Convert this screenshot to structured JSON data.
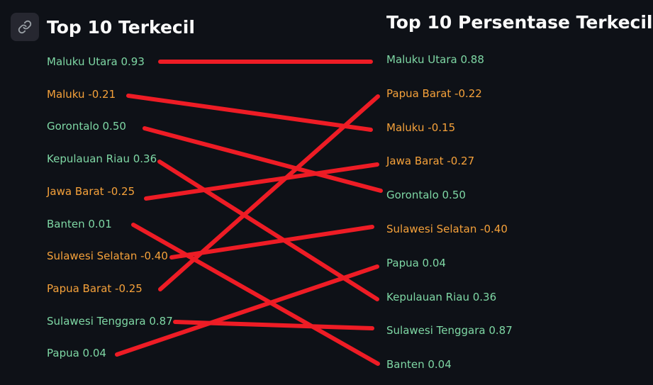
{
  "left": {
    "title": "Top 10 Terkecil",
    "items": [
      {
        "label": "Maluku Utara 0.93",
        "tone": "pos"
      },
      {
        "label": "Maluku -0.21",
        "tone": "neg"
      },
      {
        "label": "Gorontalo 0.50",
        "tone": "pos"
      },
      {
        "label": "Kepulauan Riau 0.36",
        "tone": "pos"
      },
      {
        "label": "Jawa Barat -0.25",
        "tone": "neg"
      },
      {
        "label": "Banten 0.01",
        "tone": "pos"
      },
      {
        "label": "Sulawesi Selatan -0.40",
        "tone": "neg"
      },
      {
        "label": "Papua Barat -0.25",
        "tone": "neg"
      },
      {
        "label": "Sulawesi Tenggara 0.87",
        "tone": "pos"
      },
      {
        "label": "Papua 0.04",
        "tone": "pos"
      }
    ]
  },
  "right": {
    "title": "Top 10 Persentase Terkecil",
    "items": [
      {
        "label": "Maluku Utara 0.88",
        "tone": "pos"
      },
      {
        "label": "Papua Barat -0.22",
        "tone": "neg"
      },
      {
        "label": "Maluku -0.15",
        "tone": "neg"
      },
      {
        "label": "Jawa Barat -0.27",
        "tone": "neg"
      },
      {
        "label": "Gorontalo 0.50",
        "tone": "pos"
      },
      {
        "label": "Sulawesi Selatan -0.40",
        "tone": "neg"
      },
      {
        "label": "Papua 0.04",
        "tone": "pos"
      },
      {
        "label": "Kepulauan Riau 0.36",
        "tone": "pos"
      },
      {
        "label": "Sulawesi Tenggara 0.87",
        "tone": "pos"
      },
      {
        "label": "Banten 0.04",
        "tone": "pos"
      }
    ]
  },
  "connections": [
    {
      "from": 0,
      "to": 0
    },
    {
      "from": 1,
      "to": 2
    },
    {
      "from": 2,
      "to": 4
    },
    {
      "from": 3,
      "to": 7
    },
    {
      "from": 4,
      "to": 3
    },
    {
      "from": 5,
      "to": 9
    },
    {
      "from": 6,
      "to": 5
    },
    {
      "from": 7,
      "to": 1
    },
    {
      "from": 8,
      "to": 8
    },
    {
      "from": 9,
      "to": 6
    }
  ],
  "colors": {
    "background": "#0e1117",
    "positive": "#7ed7a4",
    "negative": "#f5a13a",
    "connector": "#ee1c25"
  },
  "icons": {
    "anchor": "link-icon"
  }
}
